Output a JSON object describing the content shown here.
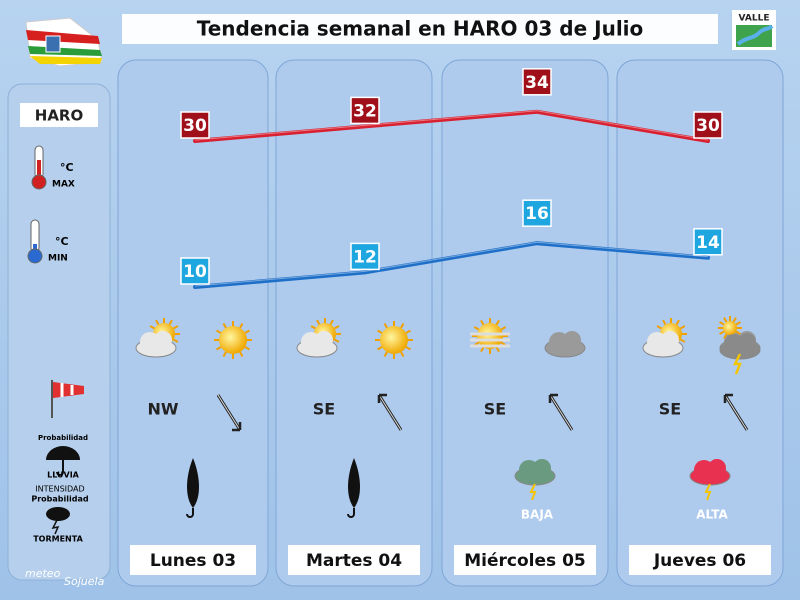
{
  "header": {
    "title": "Tendencia semanal en HARO 03 de Julio",
    "logo": "VALLE"
  },
  "sidebar": {
    "location": "HARO",
    "max_unit": "°C",
    "max_label": "MAX",
    "min_unit": "°C",
    "min_label": "MIN",
    "rain_prob": "Probabilidad",
    "rain_label": "LLUVIA",
    "storm_intensity": "INTENSIDAD",
    "storm_prob": "Probabilidad",
    "storm_label": "TORMENTA"
  },
  "days": [
    {
      "name": "Lunes 03",
      "max": 30,
      "min": 10,
      "wind": "NW"
    },
    {
      "name": "Martes 04",
      "max": 32,
      "min": 12,
      "wind": "SE"
    },
    {
      "name": "Miércoles 05",
      "max": 34,
      "min": 16,
      "wind": "SE",
      "storm": "BAJA"
    },
    {
      "name": "Jueves 06",
      "max": 30,
      "min": 14,
      "wind": "SE",
      "storm": "ALTA"
    }
  ],
  "footer": {
    "brand_1": "meteo",
    "brand_2": "Sojuela"
  }
}
